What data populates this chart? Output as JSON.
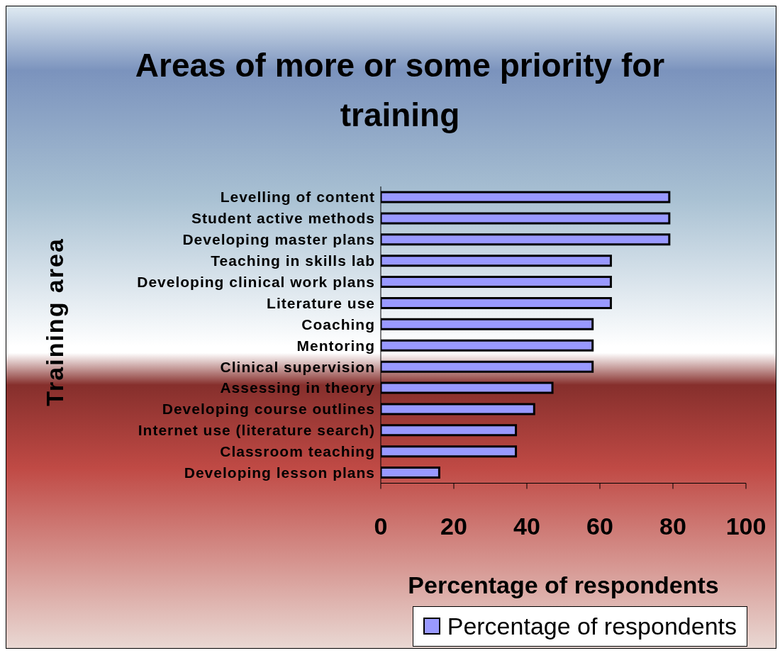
{
  "chart_data": {
    "type": "bar",
    "orientation": "horizontal",
    "title": "Areas of more or some priority for training",
    "xlabel": "Percentage of respondents",
    "ylabel": "Training area",
    "categories": [
      "Levelling of content",
      "Student active methods",
      "Developing master plans",
      "Teaching in skills lab",
      "Developing clinical work plans",
      "Literature use",
      "Coaching",
      "Mentoring",
      "Clinical supervision",
      "Assessing in theory",
      "Developing course outlines",
      "Internet use (literature search)",
      "Classroom teaching",
      "Developing lesson plans"
    ],
    "series": [
      {
        "name": "Percentage of respondents",
        "color": "#9999ff",
        "values": [
          79,
          79,
          79,
          63,
          63,
          63,
          58,
          58,
          58,
          47,
          42,
          37,
          37,
          16
        ]
      }
    ],
    "xlim": [
      0,
      100
    ],
    "xticks": [
      0,
      20,
      40,
      60,
      80,
      100
    ],
    "legend": "bottom right"
  }
}
